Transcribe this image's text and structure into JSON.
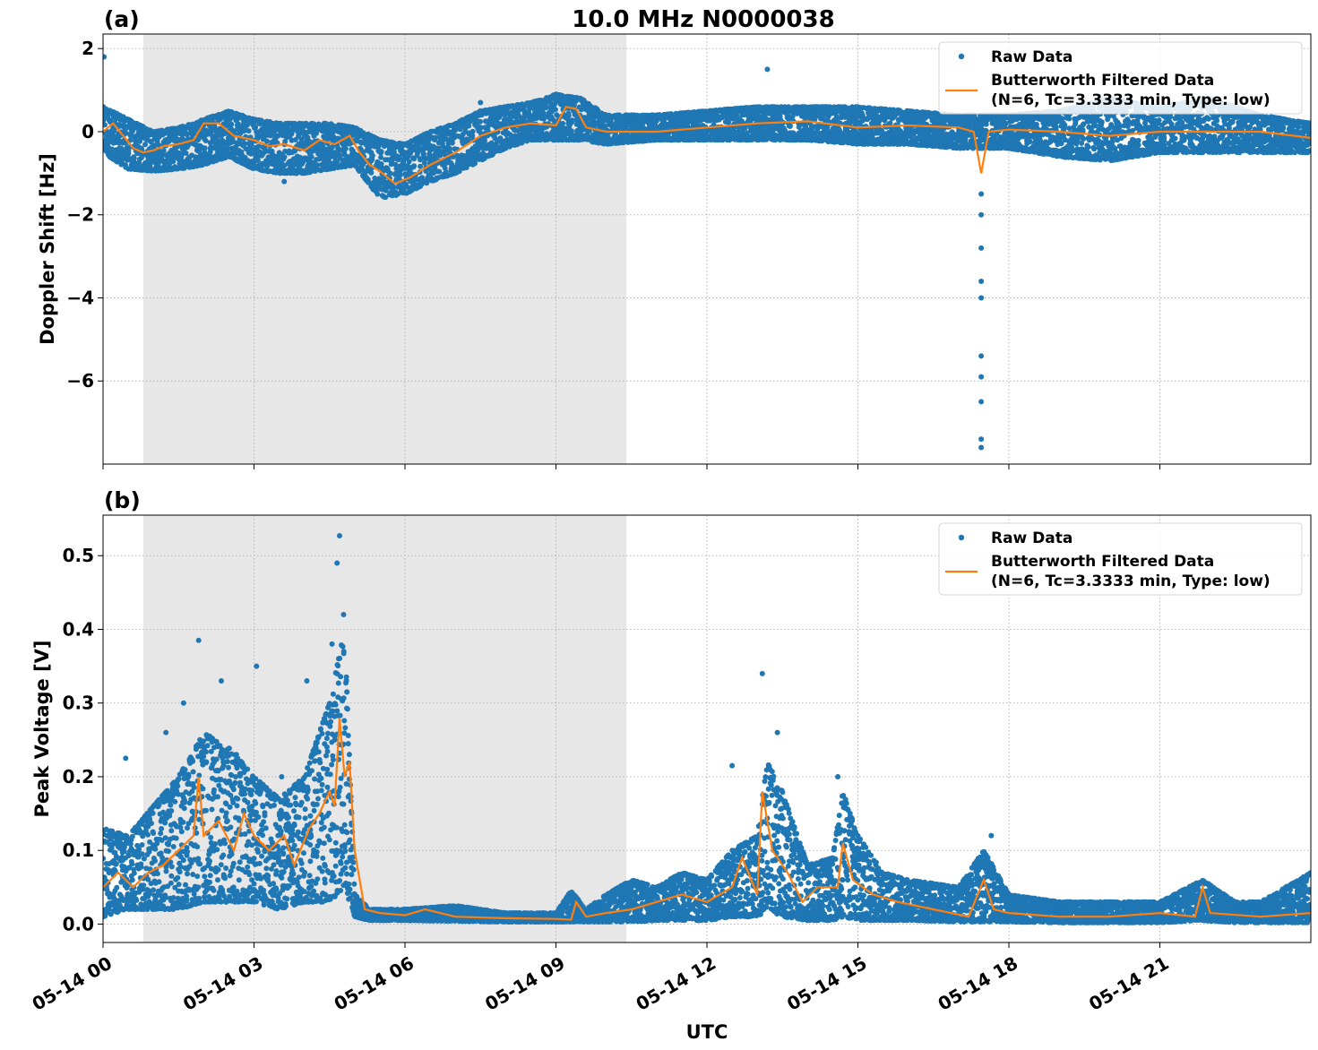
{
  "figure": {
    "title": "10.0 MHz N0000038",
    "xlabel": "UTC"
  },
  "colors": {
    "raw": "#1f77b4",
    "filtered": "#ff7f0e",
    "shade": "#e7e7e7",
    "grid": "#b0b0b0"
  },
  "chart_data": [
    {
      "type": "scatter",
      "panel_label": "(a)",
      "ylabel": "Doppler Shift [Hz]",
      "xlim": [
        "05-14 00:00",
        "05-14 24:00"
      ],
      "ylim": [
        -8.0,
        2.35
      ],
      "x_ticks": [
        "05-14 00",
        "05-14 03",
        "05-14 06",
        "05-14 09",
        "05-14 12",
        "05-14 15",
        "05-14 18",
        "05-14 21"
      ],
      "y_ticks": [
        2,
        0,
        -2,
        -4,
        -6
      ],
      "y_tick_labels": [
        "2",
        "0",
        "−2",
        "−4",
        "−6"
      ],
      "shaded_interval": [
        "05-14 00:48",
        "05-14 10:24"
      ],
      "grid": true,
      "legend_position": "top-right",
      "legend": [
        "Raw Data",
        "Butterworth Filtered Data",
        "(N=6, Tc=3.3333 min, Type: low)"
      ],
      "series": [
        {
          "name": "Butterworth Filtered Data",
          "x_hours": [
            0.0,
            0.2,
            0.4,
            0.6,
            0.8,
            1.0,
            1.2,
            1.5,
            1.8,
            2.0,
            2.3,
            2.6,
            3.0,
            3.3,
            3.6,
            4.0,
            4.3,
            4.6,
            4.9,
            5.1,
            5.3,
            5.5,
            5.8,
            6.1,
            6.5,
            7.0,
            7.5,
            8.0,
            8.5,
            9.0,
            9.2,
            9.4,
            9.6,
            10.0,
            11.0,
            12.0,
            13.0,
            14.0,
            15.0,
            16.0,
            17.0,
            17.3,
            17.45,
            17.6,
            18.0,
            19.0,
            20.0,
            21.0,
            22.0,
            23.0,
            24.0
          ],
          "y": [
            0.0,
            0.2,
            -0.1,
            -0.4,
            -0.5,
            -0.45,
            -0.35,
            -0.3,
            -0.2,
            0.2,
            0.2,
            -0.1,
            -0.2,
            -0.35,
            -0.3,
            -0.45,
            -0.2,
            -0.3,
            -0.1,
            -0.5,
            -0.8,
            -0.95,
            -1.25,
            -1.1,
            -0.8,
            -0.5,
            -0.1,
            0.1,
            0.2,
            0.15,
            0.6,
            0.55,
            0.1,
            0.0,
            0.0,
            0.1,
            0.2,
            0.25,
            0.1,
            0.15,
            0.1,
            0.0,
            -1.0,
            0.0,
            0.05,
            0.0,
            -0.1,
            0.0,
            0.0,
            0.0,
            -0.15
          ]
        },
        {
          "name": "Raw Data",
          "band_x_hours": [
            0.0,
            0.5,
            1.0,
            1.5,
            2.0,
            2.5,
            3.0,
            3.5,
            4.0,
            4.5,
            5.0,
            5.5,
            6.0,
            6.5,
            7.0,
            7.5,
            8.0,
            8.5,
            9.0,
            9.5,
            10.0,
            11.0,
            12.0,
            13.0,
            14.0,
            15.0,
            16.0,
            17.0,
            18.0,
            19.0,
            20.0,
            21.0,
            22.0,
            23.0,
            24.0
          ],
          "band_low": [
            -0.5,
            -0.9,
            -0.95,
            -0.9,
            -0.8,
            -0.6,
            -0.9,
            -1.0,
            -1.0,
            -0.9,
            -0.8,
            -1.6,
            -1.5,
            -1.2,
            -1.0,
            -0.7,
            -0.4,
            -0.2,
            -0.2,
            -0.2,
            -0.3,
            -0.2,
            -0.2,
            -0.2,
            -0.2,
            -0.3,
            -0.3,
            -0.4,
            -0.4,
            -0.6,
            -0.7,
            -0.5,
            -0.5,
            -0.5,
            -0.5
          ],
          "band_high": [
            0.6,
            0.3,
            0.0,
            0.1,
            0.3,
            0.5,
            0.3,
            0.2,
            0.2,
            0.2,
            0.1,
            -0.2,
            -0.3,
            0.0,
            0.2,
            0.5,
            0.6,
            0.7,
            0.9,
            0.8,
            0.4,
            0.4,
            0.5,
            0.6,
            0.6,
            0.6,
            0.5,
            0.4,
            0.4,
            0.5,
            0.8,
            0.6,
            0.8,
            0.4,
            0.2
          ],
          "spike_points": [
            [
              0.02,
              1.8
            ],
            [
              3.6,
              -1.2
            ],
            [
              7.5,
              0.7
            ],
            [
              13.2,
              1.5
            ],
            [
              17.45,
              -1.5
            ],
            [
              17.45,
              -2.0
            ],
            [
              17.45,
              -2.8
            ],
            [
              17.45,
              -3.6
            ],
            [
              17.45,
              -4.0
            ],
            [
              17.45,
              -5.4
            ],
            [
              17.45,
              -5.9
            ],
            [
              17.45,
              -6.5
            ],
            [
              17.45,
              -7.4
            ],
            [
              17.45,
              -7.6
            ]
          ]
        }
      ]
    },
    {
      "type": "scatter",
      "panel_label": "(b)",
      "ylabel": "Peak Voltage [V]",
      "xlim": [
        "05-14 00:00",
        "05-14 24:00"
      ],
      "ylim": [
        -0.025,
        0.555
      ],
      "x_ticks": [
        "05-14 00",
        "05-14 03",
        "05-14 06",
        "05-14 09",
        "05-14 12",
        "05-14 15",
        "05-14 18",
        "05-14 21"
      ],
      "y_ticks": [
        0.0,
        0.1,
        0.2,
        0.3,
        0.4,
        0.5
      ],
      "y_tick_labels": [
        "0.0",
        "0.1",
        "0.2",
        "0.3",
        "0.4",
        "0.5"
      ],
      "shaded_interval": [
        "05-14 00:48",
        "05-14 10:24"
      ],
      "grid": true,
      "legend_position": "top-right",
      "legend": [
        "Raw Data",
        "Butterworth Filtered Data",
        "(N=6, Tc=3.3333 min, Type: low)"
      ],
      "series": [
        {
          "name": "Butterworth Filtered Data",
          "x_hours": [
            0.0,
            0.3,
            0.6,
            0.9,
            1.2,
            1.5,
            1.8,
            1.9,
            2.0,
            2.3,
            2.6,
            2.8,
            3.0,
            3.3,
            3.6,
            3.8,
            4.1,
            4.3,
            4.5,
            4.6,
            4.7,
            4.8,
            4.9,
            5.0,
            5.2,
            5.5,
            6.0,
            6.4,
            7.0,
            8.0,
            9.0,
            9.3,
            9.4,
            9.6,
            10.0,
            10.5,
            11.0,
            11.5,
            12.0,
            12.5,
            12.7,
            13.0,
            13.1,
            13.3,
            13.6,
            13.9,
            14.2,
            14.6,
            14.7,
            14.9,
            15.3,
            15.8,
            16.5,
            17.2,
            17.5,
            17.7,
            18.0,
            19.0,
            20.0,
            21.0,
            21.7,
            21.85,
            22.0,
            23.0,
            24.0
          ],
          "y": [
            0.05,
            0.07,
            0.05,
            0.07,
            0.08,
            0.1,
            0.12,
            0.2,
            0.12,
            0.14,
            0.1,
            0.15,
            0.12,
            0.1,
            0.12,
            0.08,
            0.13,
            0.15,
            0.18,
            0.16,
            0.28,
            0.2,
            0.22,
            0.1,
            0.02,
            0.015,
            0.012,
            0.02,
            0.01,
            0.008,
            0.007,
            0.006,
            0.03,
            0.01,
            0.015,
            0.02,
            0.03,
            0.04,
            0.03,
            0.05,
            0.09,
            0.04,
            0.18,
            0.1,
            0.07,
            0.03,
            0.05,
            0.05,
            0.11,
            0.06,
            0.04,
            0.03,
            0.02,
            0.01,
            0.06,
            0.02,
            0.015,
            0.01,
            0.01,
            0.015,
            0.01,
            0.05,
            0.015,
            0.01,
            0.015
          ]
        },
        {
          "name": "Raw Data",
          "band_x_hours": [
            0.0,
            0.5,
            1.0,
            1.5,
            2.0,
            2.5,
            3.0,
            3.5,
            4.0,
            4.5,
            4.8,
            5.0,
            5.3,
            6.0,
            7.0,
            8.0,
            9.0,
            9.3,
            9.6,
            10.0,
            10.5,
            11.0,
            11.5,
            12.0,
            12.5,
            13.0,
            13.2,
            13.5,
            14.0,
            14.5,
            14.7,
            15.0,
            15.5,
            16.0,
            17.0,
            17.5,
            18.0,
            19.0,
            20.0,
            21.0,
            21.85,
            22.5,
            23.0,
            24.0
          ],
          "band_low": [
            0.01,
            0.02,
            0.02,
            0.02,
            0.03,
            0.03,
            0.03,
            0.02,
            0.03,
            0.03,
            0.05,
            0.01,
            0.005,
            0.005,
            0.004,
            0.003,
            0.003,
            0.003,
            0.003,
            0.003,
            0.003,
            0.005,
            0.005,
            0.005,
            0.01,
            0.01,
            0.02,
            0.01,
            0.005,
            0.005,
            0.01,
            0.005,
            0.005,
            0.005,
            0.003,
            0.003,
            0.003,
            0.002,
            0.002,
            0.002,
            0.005,
            0.002,
            0.002,
            0.002
          ],
          "band_high": [
            0.13,
            0.12,
            0.16,
            0.2,
            0.26,
            0.24,
            0.2,
            0.17,
            0.2,
            0.3,
            0.4,
            0.04,
            0.02,
            0.02,
            0.025,
            0.015,
            0.015,
            0.045,
            0.02,
            0.04,
            0.06,
            0.05,
            0.07,
            0.06,
            0.1,
            0.12,
            0.22,
            0.18,
            0.08,
            0.09,
            0.18,
            0.12,
            0.07,
            0.06,
            0.05,
            0.1,
            0.04,
            0.03,
            0.03,
            0.03,
            0.06,
            0.03,
            0.03,
            0.07
          ],
          "spike_points": [
            [
              0.45,
              0.225
            ],
            [
              1.25,
              0.26
            ],
            [
              1.6,
              0.3
            ],
            [
              1.9,
              0.385
            ],
            [
              2.35,
              0.33
            ],
            [
              2.65,
              0.23
            ],
            [
              3.05,
              0.35
            ],
            [
              3.55,
              0.2
            ],
            [
              4.05,
              0.33
            ],
            [
              4.55,
              0.38
            ],
            [
              4.65,
              0.49
            ],
            [
              4.7,
              0.527
            ],
            [
              4.78,
              0.42
            ],
            [
              12.5,
              0.215
            ],
            [
              13.1,
              0.34
            ],
            [
              13.4,
              0.26
            ],
            [
              14.6,
              0.2
            ],
            [
              17.65,
              0.12
            ]
          ]
        }
      ]
    }
  ]
}
